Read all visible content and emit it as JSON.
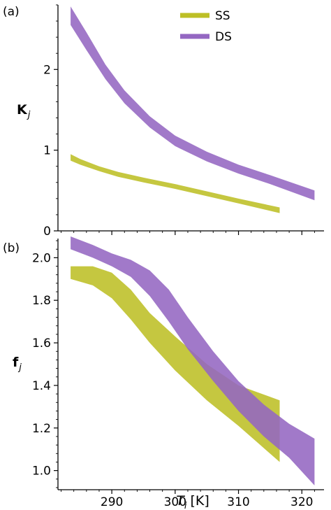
{
  "colors": {
    "SS": "#bdbf26",
    "DS": "#9467c2",
    "axis": "#000000"
  },
  "chart_data": [
    {
      "panel_label": "(a)",
      "type": "area",
      "ylabel": {
        "main": "K",
        "sub": "j"
      },
      "ylim": [
        0,
        2.8
      ],
      "yticks": [
        0,
        1,
        2
      ],
      "ytick_labels": [
        "0",
        "1",
        "2"
      ],
      "xlim": [
        281.5,
        323.5
      ],
      "legend": {
        "position": "top-right",
        "entries": [
          "SS",
          "DS"
        ]
      },
      "series": [
        {
          "name": "SS",
          "x": [
            283.5,
            285,
            288,
            291,
            295,
            300,
            305,
            310,
            316.5
          ],
          "lower": [
            0.87,
            0.82,
            0.74,
            0.67,
            0.6,
            0.52,
            0.43,
            0.34,
            0.22
          ],
          "upper": [
            0.95,
            0.89,
            0.8,
            0.73,
            0.66,
            0.58,
            0.49,
            0.4,
            0.29
          ]
        },
        {
          "name": "DS",
          "x": [
            283.5,
            286,
            289,
            292,
            296,
            300,
            305,
            310,
            315,
            322
          ],
          "lower": [
            2.55,
            2.24,
            1.88,
            1.58,
            1.28,
            1.05,
            0.86,
            0.71,
            0.58,
            0.38
          ],
          "upper": [
            2.78,
            2.46,
            2.06,
            1.74,
            1.42,
            1.18,
            0.98,
            0.82,
            0.69,
            0.5
          ]
        }
      ]
    },
    {
      "panel_label": "(b)",
      "type": "area",
      "ylabel": {
        "main": "f",
        "sub": "j"
      },
      "ylim": [
        0.91,
        2.09
      ],
      "yticks": [
        1.0,
        1.2,
        1.4,
        1.6,
        1.8,
        2.0
      ],
      "ytick_labels": [
        "1.0",
        "1.2",
        "1.4",
        "1.6",
        "1.8",
        "2.0"
      ],
      "xlim": [
        281.5,
        323.5
      ],
      "xticks": [
        290,
        300,
        310,
        320
      ],
      "xtick_labels": [
        "290",
        "300",
        "310",
        "320"
      ],
      "xlabel": {
        "var": "T",
        "sub": "i",
        "unit": "[K]"
      },
      "series": [
        {
          "name": "SS",
          "x": [
            283.5,
            287,
            290,
            293,
            296,
            300,
            305,
            310,
            316.5
          ],
          "lower": [
            1.9,
            1.87,
            1.81,
            1.71,
            1.6,
            1.47,
            1.33,
            1.21,
            1.04
          ],
          "upper": [
            1.96,
            1.96,
            1.93,
            1.85,
            1.74,
            1.63,
            1.5,
            1.4,
            1.33
          ]
        },
        {
          "name": "DS",
          "x": [
            283.5,
            287,
            290,
            293,
            296,
            299,
            302,
            306,
            310,
            314,
            318,
            322
          ],
          "lower": [
            2.04,
            2.0,
            1.96,
            1.91,
            1.82,
            1.7,
            1.57,
            1.42,
            1.28,
            1.16,
            1.06,
            0.93
          ],
          "upper": [
            2.1,
            2.06,
            2.02,
            1.99,
            1.94,
            1.85,
            1.72,
            1.56,
            1.42,
            1.31,
            1.22,
            1.15
          ]
        }
      ]
    }
  ]
}
